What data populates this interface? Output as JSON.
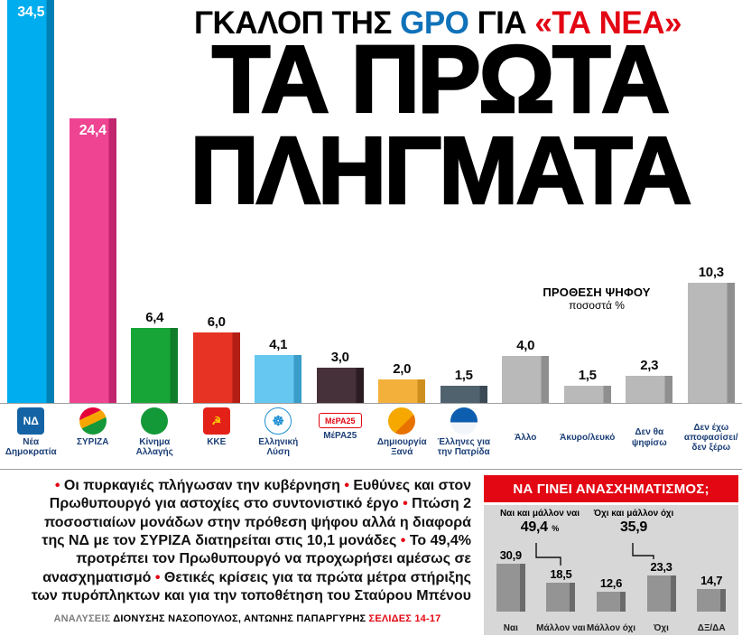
{
  "page": {
    "accent_red": "#e30613",
    "accent_blue": "#1072b9",
    "navy": "#1c3f77"
  },
  "kicker": {
    "pre": "ΓΚΑΛΟΠ ΤΗΣ",
    "brand": "GPO",
    "mid": "ΓΙΑ",
    "quote": "«ΤΑ ΝΕΑ»"
  },
  "headline": {
    "line1": "ΤΑ ΠΡΩΤΑ",
    "line2": "ΠΛΗΓΜΑΤΑ"
  },
  "main_chart": {
    "note_line1": "ΠΡΟΘΕΣΗ ΨΗΦΟΥ",
    "note_line2": "ποσοστά %",
    "parties": [
      {
        "label": "Νέα Δημοκρατία",
        "value": 34.5,
        "display": "34,5",
        "color": "#00aeef",
        "shade": "#0080b4",
        "inside": true,
        "logo": {
          "shape": "square",
          "text": "ΝΔ",
          "bg": "#1464a5",
          "fg": "#ffffff"
        }
      },
      {
        "label": "ΣΥΡΙΖΑ",
        "value": 24.4,
        "display": "24,4",
        "color": "#ee4492",
        "shade": "#c2266f",
        "inside": true,
        "logo": {
          "shape": "circle",
          "text": "",
          "bg": "linear-gradient(155deg,#e4003a 32%,#f7a600 32% 56%,#149839 56%)"
        }
      },
      {
        "label": "Κίνημα Αλλαγής",
        "value": 6.4,
        "display": "6,4",
        "color": "#18a538",
        "shade": "#0f7d2a",
        "inside": false,
        "logo": {
          "shape": "circle",
          "text": "",
          "bg": "#149939"
        }
      },
      {
        "label": "ΚΚΕ",
        "value": 6.0,
        "display": "6,0",
        "color": "#e63323",
        "shade": "#b31f14",
        "inside": false,
        "logo": {
          "shape": "square",
          "text": "☭",
          "bg": "#e32119",
          "fg": "#ffd500"
        }
      },
      {
        "label": "Ελληνική Λύση",
        "value": 4.1,
        "display": "4,1",
        "color": "#66c7f0",
        "shade": "#3a9cc9",
        "inside": false,
        "logo": {
          "shape": "circle",
          "text": "☸",
          "bg": "#ffffff",
          "fg": "#1e8fd5",
          "border": "#1e8fd5"
        }
      },
      {
        "label": "ΜέΡΑ25",
        "value": 3.0,
        "display": "3,0",
        "color": "#463039",
        "shade": "#2c1d23",
        "inside": false,
        "logo": {
          "shape": "pill",
          "text": "ΜέΡΑ25",
          "bg": "#ffffff",
          "fg": "#e30613",
          "border": "#e30613"
        }
      },
      {
        "label": "Δημιουργία Ξανά",
        "value": 2.0,
        "display": "2,0",
        "color": "#f3b13c",
        "shade": "#cf8f1e",
        "inside": false,
        "logo": {
          "shape": "circle",
          "text": "",
          "bg": "linear-gradient(135deg,#f6a800 60%,#e87200 60%)"
        }
      },
      {
        "label": "Έλληνες για την Πατρίδα",
        "value": 1.5,
        "display": "1,5",
        "color": "#51626f",
        "shade": "#3a4954",
        "inside": false,
        "logo": {
          "shape": "circle",
          "text": "",
          "bg": "linear-gradient(180deg,#0d5eaf 55%,#f2f6fa 55%)"
        }
      },
      {
        "label": "Άλλο",
        "value": 4.0,
        "display": "4,0",
        "color": "#b9b9b9",
        "shade": "#8f8f8f",
        "inside": false,
        "logo": null
      },
      {
        "label": "Άκυρο/λευκό",
        "value": 1.5,
        "display": "1,5",
        "color": "#b9b9b9",
        "shade": "#8f8f8f",
        "inside": false,
        "logo": null
      },
      {
        "label": "Δεν θα ψηφίσω",
        "value": 2.3,
        "display": "2,3",
        "color": "#b9b9b9",
        "shade": "#8f8f8f",
        "inside": false,
        "logo": null
      },
      {
        "label": "Δεν έχω αποφασίσει/ δεν ξέρω",
        "value": 10.3,
        "display": "10,3",
        "color": "#b9b9b9",
        "shade": "#8f8f8f",
        "inside": false,
        "logo": null
      }
    ]
  },
  "summary": {
    "bullets": [
      "Οι πυρκαγιές πλήγωσαν την κυβέρνηση",
      "Ευθύνες και στον Πρωθυπουργό για αστοχίες στο συντονιστικό έργο",
      "Πτώση 2 ποσοστιαίων μονάδων στην πρόθεση ψήφου αλλά η διαφορά της ΝΔ με τον ΣΥΡΙΖΑ διατηρείται στις 10,1 μονάδες",
      "Το 49,4% προτρέπει τον Πρωθυπουργό να προχωρήσει αμέσως σε ανασχηματισμό",
      "Θετικές κρίσεις για τα πρώτα μέτρα στήριξης των πυρόπληκτων και για την τοποθέτηση του Σταύρου Μπένου"
    ],
    "byline_label": "ΑΝΑΛΥΣΕΙΣ",
    "byline": "ΔΙΟΝΥΣΗΣ ΝΑΣΟΠΟΥΛΟΣ, ΑΝΤΩΝΗΣ ΠΑΠΑΡΓΥΡΗΣ",
    "pages": "ΣΕΛΙΔΕΣ 14-17"
  },
  "sidebar": {
    "title": "ΝΑ ΓΙΝΕΙ ΑΝΑΣΧΗΜΑΤΙΣΜΟΣ;",
    "panel_bg": "#d7d7d7",
    "bar_color": "#949494",
    "bar_shade": "#6a6a6a",
    "bars": [
      {
        "label": "Ναι",
        "value": 30.9,
        "display": "30,9"
      },
      {
        "label": "Μάλλον ναι",
        "value": 18.5,
        "display": "18,5"
      },
      {
        "label": "Μάλλον όχι",
        "value": 12.6,
        "display": "12,6"
      },
      {
        "label": "Όχι",
        "value": 23.3,
        "display": "23,3"
      },
      {
        "label": "ΔΞ/ΔΑ",
        "value": 14.7,
        "display": "14,7"
      }
    ],
    "annotations": [
      {
        "label": "Ναι και μάλλον ναι",
        "value": "49,4",
        "suffix": "%"
      },
      {
        "label": "Όχι και μάλλον όχι",
        "value": "35,9",
        "suffix": ""
      }
    ]
  },
  "chart_data": [
    {
      "type": "bar",
      "title": "ΠΡΟΘΕΣΗ ΨΗΦΟΥ ποσοστά %",
      "categories": [
        "Νέα Δημοκρατία",
        "ΣΥΡΙΖΑ",
        "Κίνημα Αλλαγής",
        "ΚΚΕ",
        "Ελληνική Λύση",
        "ΜέΡΑ25",
        "Δημιουργία Ξανά",
        "Έλληνες για την Πατρίδα",
        "Άλλο",
        "Άκυρο/λευκό",
        "Δεν θα ψηφίσω",
        "Δεν έχω αποφασίσει/δεν ξέρω"
      ],
      "values": [
        34.5,
        24.4,
        6.4,
        6.0,
        4.1,
        3.0,
        2.0,
        1.5,
        4.0,
        1.5,
        2.3,
        10.3
      ],
      "xlabel": "",
      "ylabel": "ποσοστά %",
      "ylim": [
        0,
        34.5
      ],
      "grid": false,
      "legend": false
    },
    {
      "type": "bar",
      "title": "ΝΑ ΓΙΝΕΙ ΑΝΑΣΧΗΜΑΤΙΣΜΟΣ;",
      "categories": [
        "Ναι",
        "Μάλλον ναι",
        "Μάλλον όχι",
        "Όχι",
        "ΔΞ/ΔΑ"
      ],
      "values": [
        30.9,
        18.5,
        12.6,
        23.3,
        14.7
      ],
      "annotations": [
        {
          "label": "Ναι και μάλλον ναι",
          "value": 49.4
        },
        {
          "label": "Όχι και μάλλον όχι",
          "value": 35.9
        }
      ],
      "xlabel": "",
      "ylabel": "%",
      "ylim": [
        0,
        35
      ],
      "grid": false,
      "legend": false
    }
  ]
}
